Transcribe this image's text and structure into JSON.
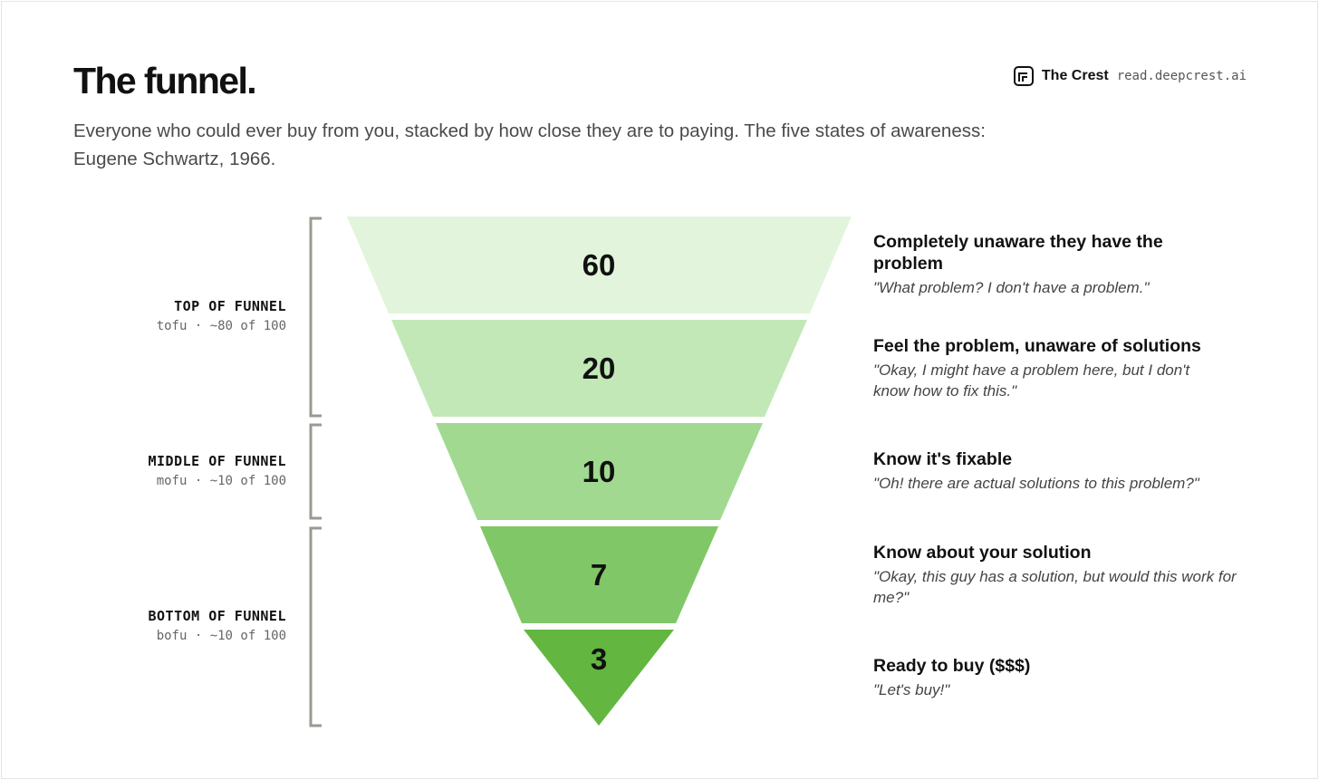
{
  "header": {
    "title": "The funnel.",
    "subtitle": "Everyone who could ever buy from you, stacked by how close they are to paying. The five states of awareness: Eugene Schwartz, 1966."
  },
  "brand": {
    "name": "The Crest",
    "url": "read.deepcrest.ai",
    "icon": "crest-logo-icon"
  },
  "stages": [
    {
      "name": "TOP OF FUNNEL",
      "sub": "tofu · ~80 of 100"
    },
    {
      "name": "MIDDLE OF FUNNEL",
      "sub": "mofu · ~10 of 100"
    },
    {
      "name": "BOTTOM OF FUNNEL",
      "sub": "bofu · ~10 of 100"
    }
  ],
  "levels": [
    {
      "value": "60",
      "title": "Completely unaware they have the problem",
      "quote": "\"What problem? I don't have a problem.\"",
      "color": "#e2f5dc"
    },
    {
      "value": "20",
      "title": "Feel the problem, unaware of solutions",
      "quote": "\"Okay, I might have a problem here, but I don't know how to fix this.\"",
      "color": "#c2e8b7"
    },
    {
      "value": "10",
      "title": "Know it's fixable",
      "quote": "\"Oh! there are actual solutions to this problem?\"",
      "color": "#a1d991"
    },
    {
      "value": "7",
      "title": "Know about your solution",
      "quote": "\"Okay, this guy has a solution, but would this work for me?\"",
      "color": "#80c767"
    },
    {
      "value": "3",
      "title": "Ready to buy ($$$)",
      "quote": "\"Let's buy!\"",
      "color": "#63b63f"
    }
  ],
  "bracket_color": "#9a9a92"
}
